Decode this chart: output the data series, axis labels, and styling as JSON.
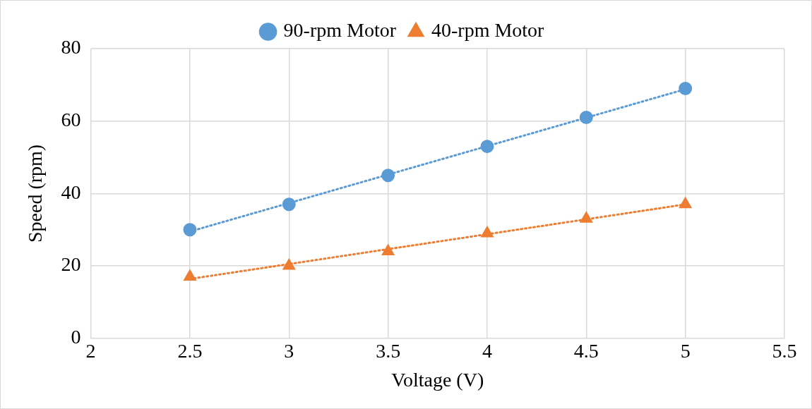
{
  "chart_data": {
    "type": "scatter",
    "xlabel": "Voltage (V)",
    "ylabel": "Speed (rpm)",
    "xlim": [
      2,
      5.5
    ],
    "xticks": [
      2,
      2.5,
      3,
      3.5,
      4,
      4.5,
      5,
      5.5
    ],
    "ylim": [
      0,
      80
    ],
    "yticks": [
      0,
      20,
      40,
      60,
      80
    ],
    "grid": true,
    "legend": "top",
    "series": [
      {
        "name": "90-rpm Motor",
        "color": "#5b9bd5",
        "marker": "circle",
        "x": [
          2.5,
          3,
          3.5,
          4,
          4.5,
          5
        ],
        "values": [
          30,
          37,
          45,
          53,
          61,
          69
        ]
      },
      {
        "name": "40-rpm Motor",
        "color": "#ed7d31",
        "marker": "triangle",
        "x": [
          2.5,
          3,
          3.5,
          4,
          4.5,
          5
        ],
        "values": [
          17,
          20,
          24,
          29,
          33,
          37
        ]
      },
      {
        "type": "line",
        "color": "#5b9bd5",
        "marker": "none",
        "line_style": "dotted",
        "x": [
          2.5,
          5
        ],
        "values": [
          29.5,
          68.8
        ]
      },
      {
        "type": "line",
        "color": "#ed7d31",
        "marker": "none",
        "line_style": "dotted",
        "x": [
          2.5,
          5
        ],
        "values": [
          16.4,
          37
        ]
      }
    ]
  }
}
